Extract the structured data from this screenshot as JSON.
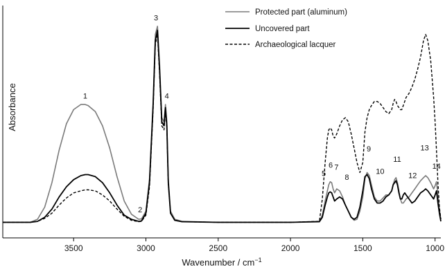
{
  "chart_data": {
    "type": "line",
    "title": "",
    "xlabel": "Wavenumber / cm",
    "xlabel_superscript": "−1",
    "ylabel": "Absorbance",
    "xlim": [
      3990,
      960
    ],
    "ylim": [
      0,
      1.0
    ],
    "x_reversed": true,
    "y_ticks_shown": false,
    "grid": false,
    "legend_position": "top-right",
    "x_ticks": [
      3500,
      3000,
      2500,
      2000,
      1500,
      1000
    ],
    "x_tick_labels": [
      "3500",
      "3000",
      "2500",
      "2000",
      "1500",
      "1000"
    ],
    "series": [
      {
        "name": "Protected part (aluminum)",
        "color": "#7a7a7a",
        "style": "solid",
        "x": [
          3990,
          3800,
          3750,
          3700,
          3650,
          3600,
          3550,
          3500,
          3450,
          3420,
          3400,
          3350,
          3300,
          3250,
          3200,
          3150,
          3100,
          3050,
          3030,
          3000,
          2975,
          2950,
          2935,
          2920,
          2905,
          2890,
          2875,
          2865,
          2855,
          2845,
          2830,
          2800,
          2750,
          2500,
          2000,
          1800,
          1780,
          1760,
          1745,
          1735,
          1725,
          1715,
          1705,
          1695,
          1680,
          1660,
          1640,
          1620,
          1600,
          1580,
          1560,
          1540,
          1520,
          1500,
          1485,
          1470,
          1455,
          1440,
          1420,
          1400,
          1380,
          1360,
          1340,
          1320,
          1300,
          1290,
          1280,
          1270,
          1260,
          1250,
          1240,
          1230,
          1220,
          1210,
          1200,
          1180,
          1160,
          1140,
          1120,
          1100,
          1080,
          1065,
          1050,
          1030,
          1010,
          1000,
          990,
          980,
          970,
          960
        ],
        "y": [
          0.005,
          0.005,
          0.02,
          0.08,
          0.2,
          0.36,
          0.49,
          0.56,
          0.585,
          0.585,
          0.58,
          0.55,
          0.48,
          0.37,
          0.23,
          0.11,
          0.045,
          0.02,
          0.022,
          0.06,
          0.22,
          0.6,
          0.93,
          0.97,
          0.78,
          0.52,
          0.5,
          0.585,
          0.5,
          0.22,
          0.06,
          0.02,
          0.01,
          0.005,
          0.005,
          0.01,
          0.04,
          0.11,
          0.16,
          0.19,
          0.205,
          0.2,
          0.17,
          0.15,
          0.17,
          0.16,
          0.13,
          0.09,
          0.06,
          0.03,
          0.015,
          0.02,
          0.06,
          0.13,
          0.22,
          0.25,
          0.235,
          0.19,
          0.13,
          0.11,
          0.11,
          0.125,
          0.14,
          0.14,
          0.16,
          0.19,
          0.215,
          0.225,
          0.2,
          0.16,
          0.12,
          0.1,
          0.1,
          0.11,
          0.12,
          0.13,
          0.15,
          0.17,
          0.19,
          0.21,
          0.225,
          0.235,
          0.225,
          0.2,
          0.17,
          0.185,
          0.205,
          0.14,
          0.07,
          0.02
        ]
      },
      {
        "name": "Uncovered part",
        "color": "#000000",
        "style": "solid",
        "x": [
          3990,
          3800,
          3750,
          3700,
          3650,
          3600,
          3550,
          3500,
          3450,
          3420,
          3400,
          3350,
          3300,
          3250,
          3200,
          3150,
          3100,
          3050,
          3030,
          3000,
          2975,
          2950,
          2935,
          2920,
          2905,
          2890,
          2875,
          2865,
          2855,
          2845,
          2830,
          2800,
          2750,
          2500,
          2000,
          1800,
          1780,
          1760,
          1745,
          1735,
          1725,
          1715,
          1705,
          1695,
          1680,
          1660,
          1640,
          1620,
          1600,
          1580,
          1560,
          1540,
          1520,
          1500,
          1485,
          1470,
          1455,
          1440,
          1420,
          1400,
          1380,
          1360,
          1340,
          1320,
          1300,
          1290,
          1280,
          1270,
          1260,
          1250,
          1240,
          1230,
          1220,
          1210,
          1200,
          1180,
          1160,
          1140,
          1120,
          1100,
          1080,
          1065,
          1050,
          1030,
          1010,
          1000,
          990,
          980,
          970,
          960
        ],
        "y": [
          0.005,
          0.005,
          0.01,
          0.03,
          0.07,
          0.13,
          0.18,
          0.215,
          0.235,
          0.24,
          0.24,
          0.23,
          0.2,
          0.15,
          0.09,
          0.04,
          0.02,
          0.01,
          0.012,
          0.05,
          0.2,
          0.58,
          0.9,
          0.95,
          0.75,
          0.5,
          0.48,
          0.57,
          0.48,
          0.2,
          0.05,
          0.015,
          0.008,
          0.005,
          0.005,
          0.008,
          0.03,
          0.09,
          0.13,
          0.15,
          0.155,
          0.15,
          0.13,
          0.11,
          0.12,
          0.13,
          0.12,
          0.09,
          0.06,
          0.03,
          0.02,
          0.03,
          0.08,
          0.16,
          0.23,
          0.24,
          0.22,
          0.17,
          0.12,
          0.1,
          0.1,
          0.11,
          0.13,
          0.14,
          0.16,
          0.19,
          0.2,
          0.21,
          0.19,
          0.15,
          0.12,
          0.12,
          0.14,
          0.15,
          0.14,
          0.12,
          0.1,
          0.11,
          0.13,
          0.15,
          0.16,
          0.17,
          0.16,
          0.14,
          0.12,
          0.14,
          0.16,
          0.1,
          0.05,
          0.01
        ]
      },
      {
        "name": "Archaeological lacquer",
        "color": "#000000",
        "style": "dashed",
        "x": [
          3990,
          3800,
          3750,
          3700,
          3650,
          3600,
          3550,
          3500,
          3450,
          3420,
          3400,
          3350,
          3300,
          3250,
          3200,
          3150,
          3100,
          3050,
          3030,
          3000,
          2975,
          2950,
          2935,
          2920,
          2905,
          2890,
          2875,
          2865,
          2855,
          2845,
          2830,
          2800,
          2750,
          2500,
          2000,
          1800,
          1780,
          1760,
          1745,
          1735,
          1725,
          1715,
          1705,
          1695,
          1680,
          1660,
          1640,
          1620,
          1600,
          1580,
          1560,
          1540,
          1520,
          1500,
          1485,
          1470,
          1455,
          1440,
          1420,
          1400,
          1380,
          1360,
          1340,
          1320,
          1300,
          1290,
          1280,
          1270,
          1260,
          1250,
          1240,
          1230,
          1220,
          1210,
          1200,
          1180,
          1160,
          1140,
          1120,
          1100,
          1080,
          1065,
          1050,
          1030,
          1010,
          1000,
          990,
          980,
          970,
          960
        ],
        "y": [
          0.005,
          0.005,
          0.01,
          0.025,
          0.05,
          0.09,
          0.125,
          0.15,
          0.16,
          0.165,
          0.165,
          0.16,
          0.14,
          0.11,
          0.07,
          0.035,
          0.015,
          0.008,
          0.01,
          0.04,
          0.18,
          0.56,
          0.88,
          0.93,
          0.73,
          0.48,
          0.46,
          0.55,
          0.47,
          0.19,
          0.05,
          0.015,
          0.008,
          0.005,
          0.005,
          0.01,
          0.12,
          0.3,
          0.42,
          0.46,
          0.47,
          0.46,
          0.43,
          0.42,
          0.44,
          0.48,
          0.51,
          0.52,
          0.5,
          0.44,
          0.37,
          0.3,
          0.25,
          0.3,
          0.45,
          0.52,
          0.56,
          0.58,
          0.6,
          0.6,
          0.59,
          0.57,
          0.55,
          0.54,
          0.56,
          0.59,
          0.61,
          0.6,
          0.58,
          0.57,
          0.56,
          0.56,
          0.58,
          0.6,
          0.62,
          0.64,
          0.67,
          0.71,
          0.76,
          0.82,
          0.9,
          0.93,
          0.9,
          0.8,
          0.62,
          0.5,
          0.36,
          0.2,
          0.08,
          0.02
        ]
      }
    ],
    "annotations": [
      {
        "text": "1",
        "x": 3420,
        "y": 0.6
      },
      {
        "text": "2",
        "x": 3040,
        "y": 0.04
      },
      {
        "text": "3",
        "x": 2930,
        "y": 0.985
      },
      {
        "text": "4",
        "x": 2855,
        "y": 0.6
      },
      {
        "text": "5",
        "x": 1770,
        "y": 0.22
      },
      {
        "text": "6",
        "x": 1722,
        "y": 0.26
      },
      {
        "text": "7",
        "x": 1682,
        "y": 0.25
      },
      {
        "text": "8",
        "x": 1610,
        "y": 0.2
      },
      {
        "text": "9",
        "x": 1458,
        "y": 0.34
      },
      {
        "text": "10",
        "x": 1380,
        "y": 0.23
      },
      {
        "text": "11",
        "x": 1262,
        "y": 0.29
      },
      {
        "text": "12",
        "x": 1155,
        "y": 0.21
      },
      {
        "text": "13",
        "x": 1072,
        "y": 0.345
      },
      {
        "text": "14",
        "x": 990,
        "y": 0.255
      }
    ]
  }
}
